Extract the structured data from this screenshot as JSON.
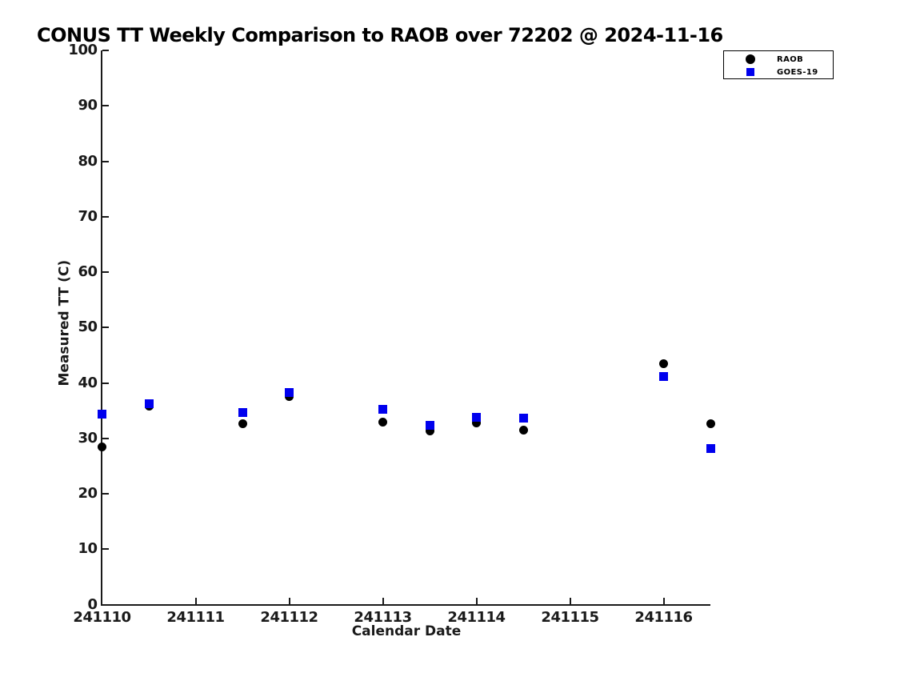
{
  "chart_data": {
    "type": "scatter",
    "title": "CONUS TT Weekly Comparison to RAOB over 72202 @ 2024-11-16",
    "xlabel": "Calendar Date",
    "ylabel": "Measured TT (C)",
    "xlim": [
      241110,
      241116.5
    ],
    "ylim": [
      0,
      100
    ],
    "xticks": [
      241110,
      241111,
      241112,
      241113,
      241114,
      241115,
      241116
    ],
    "yticks": [
      0,
      10,
      20,
      30,
      40,
      50,
      60,
      70,
      80,
      90,
      100
    ],
    "grid": false,
    "legend_position": "top-right-outside",
    "x": [
      241110,
      241110.5,
      241111.5,
      241112,
      241113,
      241113.5,
      241114,
      241114.5,
      241116,
      241116.5
    ],
    "series": [
      {
        "name": "RAOB",
        "marker": "circle",
        "color": "#000000",
        "values": [
          28.5,
          35.8,
          32.6,
          37.5,
          32.9,
          31.3,
          32.8,
          31.5,
          43.5,
          32.7
        ]
      },
      {
        "name": "GOES-19",
        "marker": "square",
        "color": "#0000EE",
        "values": [
          34.3,
          36.2,
          34.6,
          38.3,
          35.3,
          32.3,
          33.8,
          33.6,
          41.2,
          28.1
        ]
      }
    ]
  }
}
